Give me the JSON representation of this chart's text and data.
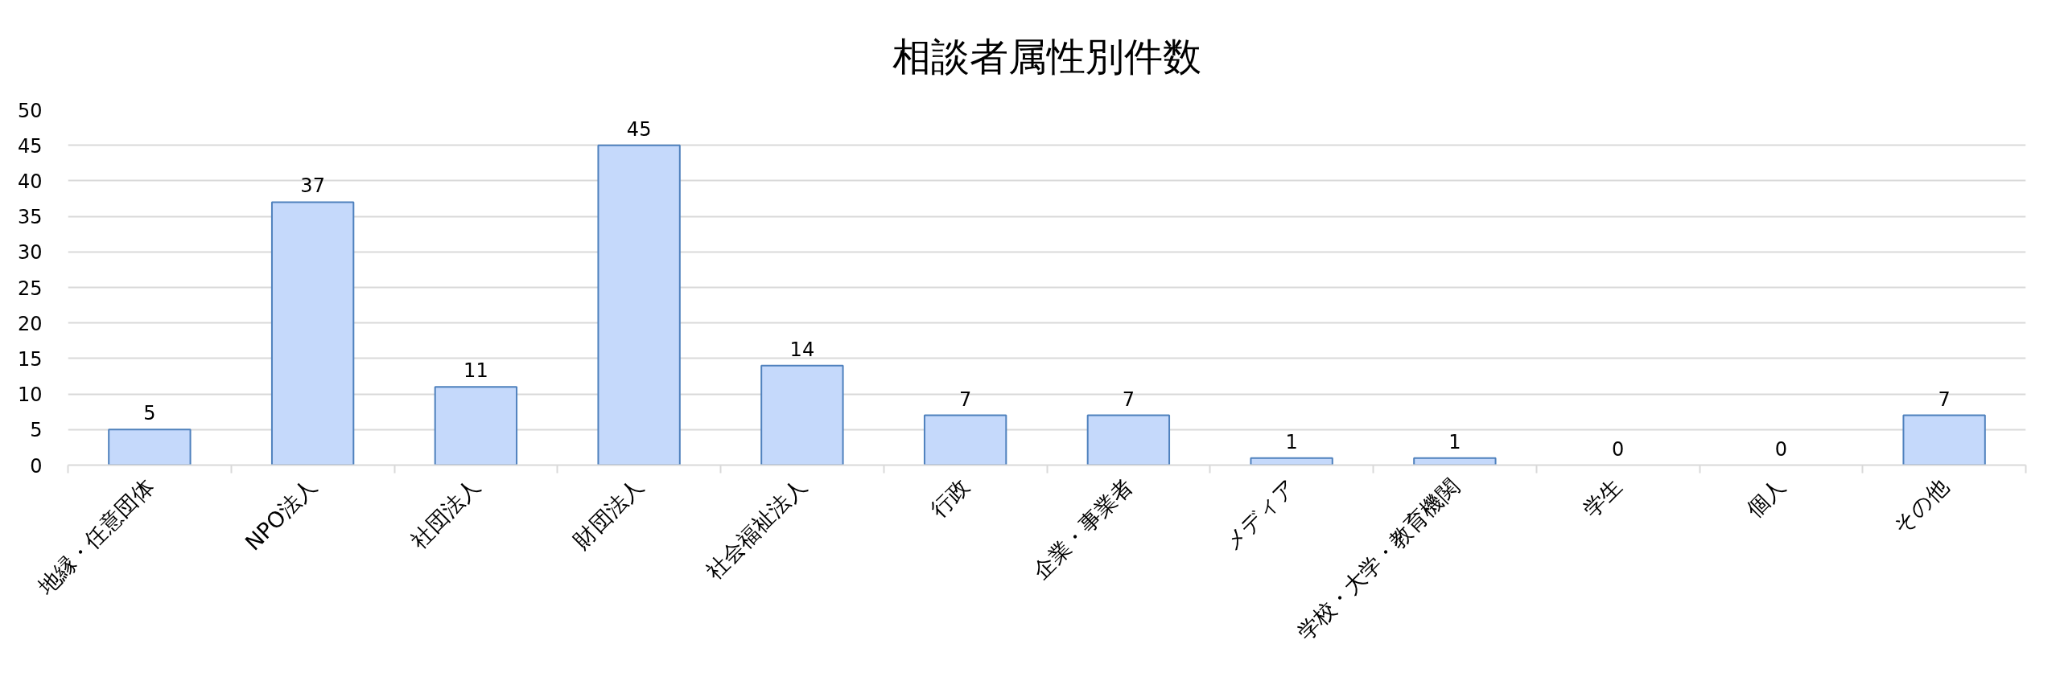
{
  "chart_data": {
    "type": "bar",
    "title": "相談者属性別件数",
    "categories": [
      "地縁・任意団体",
      "NPO法人",
      "社団法人",
      "財団法人",
      "社会福祉法人",
      "行政",
      "企業・事業者",
      "メディア",
      "学校・大学・教育機関",
      "学生",
      "個人",
      "その他"
    ],
    "values": [
      5,
      37,
      11,
      45,
      14,
      7,
      7,
      1,
      1,
      0,
      0,
      7
    ],
    "color": "#c5d9fb",
    "ylim": [
      0,
      50
    ],
    "yticks": [
      0,
      5,
      10,
      15,
      20,
      25,
      30,
      35,
      40,
      45,
      50
    ],
    "grid": "y",
    "data_labels": true
  }
}
